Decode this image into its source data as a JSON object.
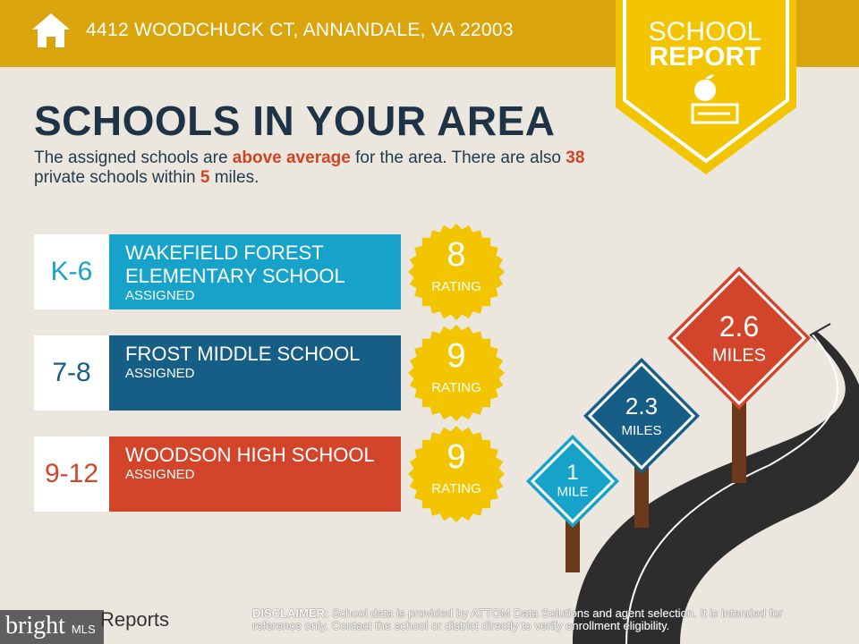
{
  "header": {
    "address": "4412 WOODCHUCK CT, ANNANDALE, VA 22003",
    "home_icon": "home-icon"
  },
  "badge": {
    "line1": "SCHOOL",
    "line2": "REPORT",
    "icon": "apple-on-book-icon"
  },
  "title": "SCHOOLS IN YOUR AREA",
  "summary": {
    "p1": "The assigned schools are ",
    "highlight1": "above average",
    "p2": " for the area. There are also ",
    "count": "38",
    "p3": " private schools within ",
    "miles": "5",
    "p4": " miles."
  },
  "schools": [
    {
      "grade": "K-6",
      "name": "WAKEFIELD FOREST ELEMENTARY SCHOOL",
      "status": "ASSIGNED",
      "rating": "8",
      "rating_label": "RATING",
      "color": "#16a2c9"
    },
    {
      "grade": "7-8",
      "name": "FROST MIDDLE SCHOOL",
      "status": "ASSIGNED",
      "rating": "9",
      "rating_label": "RATING",
      "color": "#165e86"
    },
    {
      "grade": "9-12",
      "name": "WOODSON HIGH SCHOOL",
      "status": "ASSIGNED",
      "rating": "9",
      "rating_label": "RATING",
      "color": "#d3452a"
    }
  ],
  "signs": [
    {
      "value": "1",
      "unit": "MILE",
      "color": "#16a2c9"
    },
    {
      "value": "2.3",
      "unit": "MILES",
      "color": "#165e86"
    },
    {
      "value": "2.6",
      "unit": "MILES",
      "color": "#d3452a"
    }
  ],
  "footer": {
    "logo": "bright",
    "logo_sub": "MLS",
    "reports": "Reports",
    "disclaimer_label": "DISCLAIMER:",
    "disclaimer": " School data is provided by ATTOM Data Solutions and agent selection. It is intended for reference only. Contact the school or district directly to verify enrollment eligibility."
  },
  "colors": {
    "header": "#d9a40c",
    "badge": "#f2c500",
    "title": "#1e3346",
    "accent": "#cf4424",
    "background": "#ebe7de"
  }
}
